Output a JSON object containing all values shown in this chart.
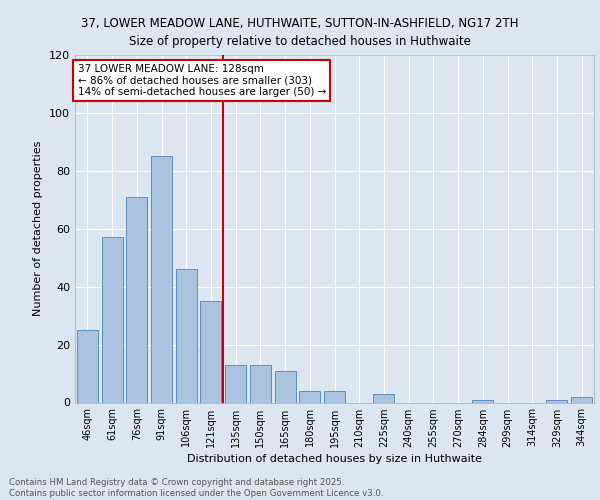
{
  "title_line1": "37, LOWER MEADOW LANE, HUTHWAITE, SUTTON-IN-ASHFIELD, NG17 2TH",
  "title_line2": "Size of property relative to detached houses in Huthwaite",
  "xlabel": "Distribution of detached houses by size in Huthwaite",
  "ylabel": "Number of detached properties",
  "categories": [
    "46sqm",
    "61sqm",
    "76sqm",
    "91sqm",
    "106sqm",
    "121sqm",
    "135sqm",
    "150sqm",
    "165sqm",
    "180sqm",
    "195sqm",
    "210sqm",
    "225sqm",
    "240sqm",
    "255sqm",
    "270sqm",
    "284sqm",
    "299sqm",
    "314sqm",
    "329sqm",
    "344sqm"
  ],
  "values": [
    25,
    57,
    71,
    85,
    46,
    35,
    13,
    13,
    11,
    4,
    4,
    0,
    3,
    0,
    0,
    0,
    1,
    0,
    0,
    1,
    2
  ],
  "bar_color": "#aac4e0",
  "bar_edge_color": "#5a8fc0",
  "vline_color": "#cc0000",
  "ylim": [
    0,
    120
  ],
  "yticks": [
    0,
    20,
    40,
    60,
    80,
    100,
    120
  ],
  "annotation_title": "37 LOWER MEADOW LANE: 128sqm",
  "annotation_line2": "← 86% of detached houses are smaller (303)",
  "annotation_line3": "14% of semi-detached houses are larger (50) →",
  "annotation_box_color": "#ffffff",
  "annotation_edge_color": "#cc0000",
  "footer_line1": "Contains HM Land Registry data © Crown copyright and database right 2025.",
  "footer_line2": "Contains public sector information licensed under the Open Government Licence v3.0.",
  "bg_color": "#dce6f0",
  "plot_bg_color": "#dce6f0"
}
